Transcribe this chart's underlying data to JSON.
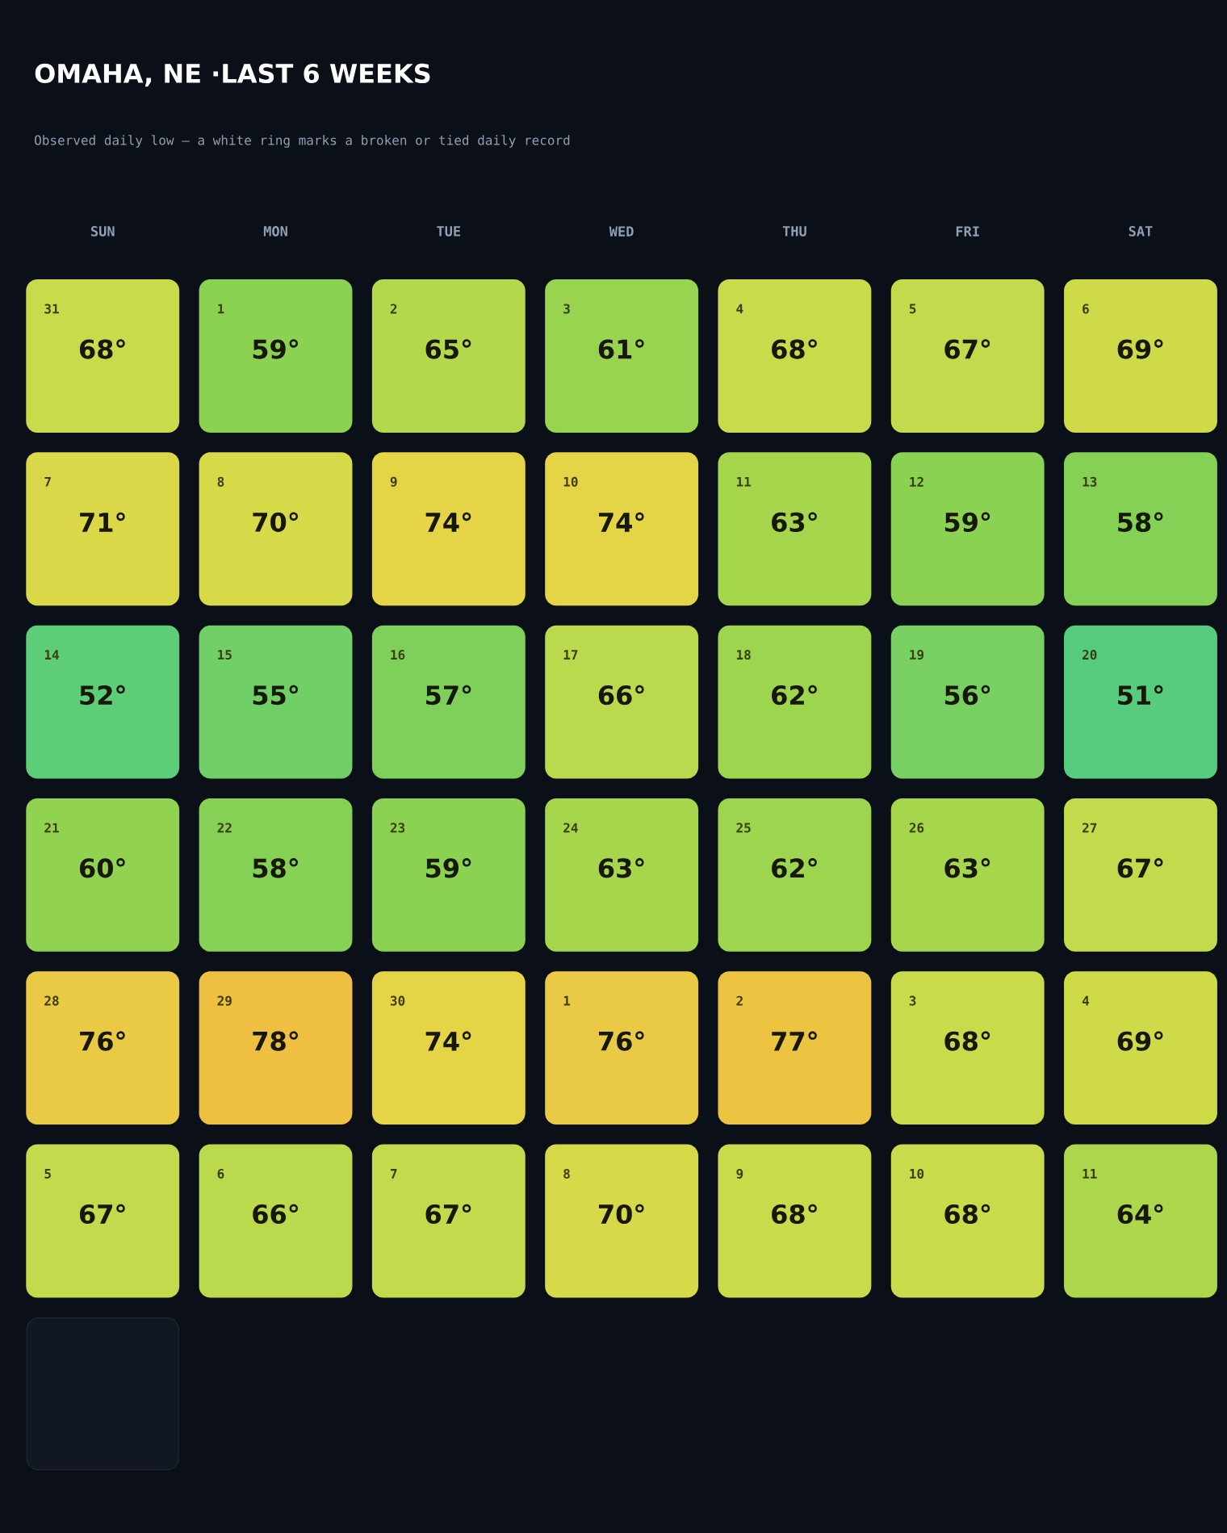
{
  "chart_data": {
    "type": "heatmap",
    "title": "OMAHA, NE ·LAST 6 WEEKS",
    "subtitle": "Observed daily low — a white ring marks a broken or tied daily record",
    "categories": [
      "SUN",
      "MON",
      "TUE",
      "WED",
      "THU",
      "FRI",
      "SAT"
    ],
    "y_categories": [
      null,
      null,
      null,
      null,
      null,
      null
    ],
    "cells": [
      [
        68,
        59,
        65,
        61,
        68,
        67,
        69
      ],
      [
        71,
        70,
        74,
        74,
        63,
        59,
        58
      ],
      [
        52,
        55,
        57,
        66,
        62,
        56,
        51
      ],
      [
        60,
        58,
        59,
        63,
        62,
        63,
        67
      ],
      [
        76,
        78,
        74,
        76,
        77,
        68,
        69
      ],
      [
        67,
        66,
        67,
        70,
        68,
        68,
        64
      ]
    ],
    "cell_labels": [
      [
        "68°",
        "59°",
        "65°",
        "61°",
        "68°",
        "67°",
        "69°"
      ],
      [
        "71°",
        "70°",
        "74°",
        "74°",
        "63°",
        "59°",
        "58°"
      ],
      [
        "52°",
        "55°",
        "57°",
        "66°",
        "62°",
        "56°",
        "51°"
      ],
      [
        "60°",
        "58°",
        "59°",
        "63°",
        "62°",
        "63°",
        "67°"
      ],
      [
        "76°",
        "78°",
        "74°",
        "76°",
        "77°",
        "68°",
        "69°"
      ],
      [
        "67°",
        "66°",
        "67°",
        "70°",
        "68°",
        "68°",
        "64°"
      ]
    ],
    "annotations": [
      "31",
      "1",
      "2",
      "3",
      "4",
      "5",
      "6",
      "7",
      "8",
      "9",
      "10",
      "11",
      "12",
      "13",
      "14",
      "15",
      "16",
      "17",
      "18",
      "19",
      "20",
      "21",
      "22",
      "23",
      "24",
      "25",
      "26",
      "27",
      "28",
      "29",
      "30",
      "1",
      "2",
      "3",
      "4",
      "5",
      "6",
      "7",
      "8",
      "9",
      "10",
      "11"
    ]
  }
}
